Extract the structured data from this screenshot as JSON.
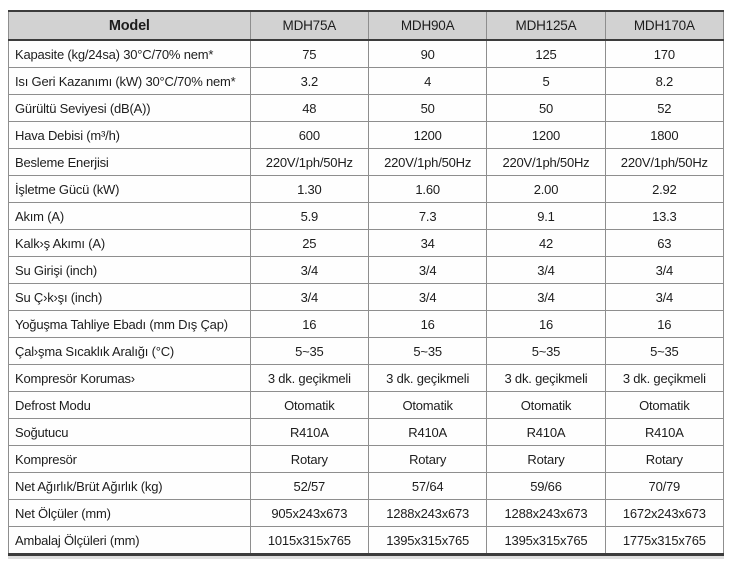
{
  "colors": {
    "header_bg": "#d2d2d2",
    "border_dark": "#3c3c3c",
    "border_light": "#8e8e8e",
    "text": "#1d1d1d",
    "page_bg": "#ffffff"
  },
  "table": {
    "header": {
      "model_label": "Model",
      "columns": [
        "MDH75A",
        "MDH90A",
        "MDH125A",
        "MDH170A"
      ]
    },
    "rows": [
      {
        "label": "Kapasite (kg/24sa) 30°C/70% nem*",
        "values": [
          "75",
          "90",
          "125",
          "170"
        ]
      },
      {
        "label": "Isı Geri Kazanımı (kW) 30°C/70% nem*",
        "values": [
          "3.2",
          "4",
          "5",
          "8.2"
        ]
      },
      {
        "label": "Gürültü Seviyesi (dB(A))",
        "values": [
          "48",
          "50",
          "50",
          "52"
        ]
      },
      {
        "label": "Hava Debisi (m³/h)",
        "values": [
          "600",
          "1200",
          "1200",
          "1800"
        ]
      },
      {
        "label": "Besleme Enerjisi",
        "values": [
          "220V/1ph/50Hz",
          "220V/1ph/50Hz",
          "220V/1ph/50Hz",
          "220V/1ph/50Hz"
        ]
      },
      {
        "label": "İşletme Gücü (kW)",
        "values": [
          "1.30",
          "1.60",
          "2.00",
          "2.92"
        ]
      },
      {
        "label": "Akım (A)",
        "values": [
          "5.9",
          "7.3",
          "9.1",
          "13.3"
        ]
      },
      {
        "label": "Kalk›ş Akımı (A)",
        "values": [
          "25",
          "34",
          "42",
          "63"
        ]
      },
      {
        "label": "Su Girişi (inch)",
        "values": [
          "3/4",
          "3/4",
          "3/4",
          "3/4"
        ]
      },
      {
        "label": "Su Ç›k›şı (inch)",
        "values": [
          "3/4",
          "3/4",
          "3/4",
          "3/4"
        ]
      },
      {
        "label": "Yoğuşma Tahliye Ebadı (mm Dış Çap)",
        "values": [
          "16",
          "16",
          "16",
          "16"
        ]
      },
      {
        "label": "Çal›şma Sıcaklık Aralığı (°C)",
        "values": [
          "5~35",
          "5~35",
          "5~35",
          "5~35"
        ]
      },
      {
        "label": "Kompresör Korumas›",
        "values": [
          "3 dk. geçikmeli",
          "3 dk. geçikmeli",
          "3 dk. geçikmeli",
          "3 dk. geçikmeli"
        ]
      },
      {
        "label": "Defrost Modu",
        "values": [
          "Otomatik",
          "Otomatik",
          "Otomatik",
          "Otomatik"
        ]
      },
      {
        "label": "Soğutucu",
        "values": [
          "R410A",
          "R410A",
          "R410A",
          "R410A"
        ]
      },
      {
        "label": "Kompresör",
        "values": [
          "Rotary",
          "Rotary",
          "Rotary",
          "Rotary"
        ]
      },
      {
        "label": "Net Ağırlık/Brüt Ağırlık (kg)",
        "values": [
          "52/57",
          "57/64",
          "59/66",
          "70/79"
        ]
      },
      {
        "label": "Net Ölçüler (mm)",
        "values": [
          "905x243x673",
          "1288x243x673",
          "1288x243x673",
          "1672x243x673"
        ]
      },
      {
        "label": "Ambalaj Ölçüleri (mm)",
        "values": [
          "1015x315x765",
          "1395x315x765",
          "1395x315x765",
          "1775x315x765"
        ]
      }
    ]
  }
}
